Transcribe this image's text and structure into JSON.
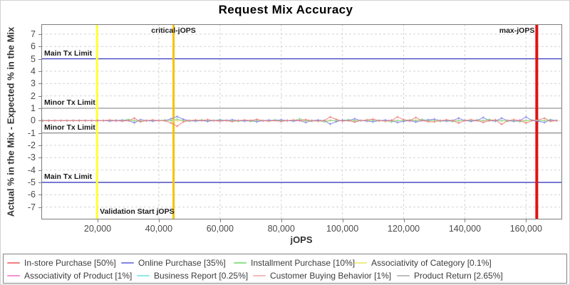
{
  "title": "Request Mix Accuracy",
  "chart_data": {
    "type": "line",
    "title": "Request Mix Accuracy",
    "xlabel": "jOPS",
    "ylabel": "Actual % in the Mix - Expected % in the Mix",
    "grid": true,
    "legend_position": "bottom",
    "x_axis": {
      "min": 1600,
      "max": 171800,
      "ticks": [
        {
          "v": 20000,
          "label": "20,000"
        },
        {
          "v": 40000,
          "label": "40,000"
        },
        {
          "v": 60000,
          "label": "60,000"
        },
        {
          "v": 80000,
          "label": "80,000"
        },
        {
          "v": 100000,
          "label": "100,000"
        },
        {
          "v": 120000,
          "label": "120,000"
        },
        {
          "v": 140000,
          "label": "140,000"
        },
        {
          "v": 160000,
          "label": "160,000"
        }
      ]
    },
    "y_axis": {
      "min": -8.0,
      "max": 7.8,
      "ticks": [
        {
          "v": 7,
          "label": "7"
        },
        {
          "v": 6,
          "label": "6"
        },
        {
          "v": 5,
          "label": "5"
        },
        {
          "v": 4,
          "label": "4"
        },
        {
          "v": 3,
          "label": "3"
        },
        {
          "v": 2,
          "label": "2"
        },
        {
          "v": 1,
          "label": "1"
        },
        {
          "v": 0,
          "label": "0"
        },
        {
          "v": -1,
          "label": "-1"
        },
        {
          "v": -2,
          "label": "-2"
        },
        {
          "v": -3,
          "label": "-3"
        },
        {
          "v": -4,
          "label": "-4"
        },
        {
          "v": -5,
          "label": "-5"
        },
        {
          "v": -6,
          "label": "-6"
        },
        {
          "v": -7,
          "label": "-7"
        }
      ]
    },
    "limit_lines": [
      {
        "y": 5,
        "label": "Main Tx Limit",
        "color": "#2929b8"
      },
      {
        "y": 1,
        "label": "Minor Tx Limit",
        "color": "#8c8c8c"
      },
      {
        "y": -1,
        "label": "Minor Tx Limit",
        "color": "#8c8c8c"
      },
      {
        "y": -5,
        "label": "Main Tx Limit",
        "color": "#2929b8"
      }
    ],
    "markers": [
      {
        "x": 19800,
        "label": "Validation Start jOPS",
        "color": "#ffff30",
        "width": 3
      },
      {
        "x": 44800,
        "label": "critical-jOPS",
        "color": "#f3c300",
        "width": 3
      },
      {
        "x": 163500,
        "label": "max-jOPS",
        "color": "#e11212",
        "width": 4
      }
    ],
    "x": [
      2000,
      4000,
      6000,
      8000,
      10000,
      12000,
      14000,
      16000,
      18000,
      20000,
      22000,
      24000,
      26000,
      28000,
      30000,
      32000,
      34000,
      36000,
      38000,
      40000,
      42000,
      44000,
      46000,
      48000,
      50000,
      52000,
      54000,
      56000,
      58000,
      60000,
      62000,
      64000,
      66000,
      68000,
      70000,
      72000,
      74000,
      76000,
      78000,
      80000,
      82000,
      84000,
      86000,
      88000,
      90000,
      92000,
      94000,
      96000,
      98000,
      100000,
      102000,
      104000,
      106000,
      108000,
      110000,
      112000,
      114000,
      116000,
      118000,
      120000,
      122000,
      124000,
      126000,
      128000,
      130000,
      132000,
      134000,
      136000,
      138000,
      140000,
      142000,
      144000,
      146000,
      148000,
      150000,
      152000,
      154000,
      156000,
      158000,
      160000,
      162000,
      164000,
      166000,
      168000,
      170000
    ],
    "series": [
      {
        "name": "In-store Purchase [50%]",
        "color": "#ef8080",
        "values": [
          0,
          0,
          0,
          0,
          0,
          0,
          0,
          0,
          0,
          0,
          0,
          0.05,
          0,
          -0.05,
          0,
          0.2,
          -0.1,
          0,
          0.05,
          0,
          0,
          -0.2,
          -0.45,
          -0.1,
          0,
          0.05,
          0,
          0.08,
          0,
          -0.05,
          0,
          -0.08,
          0,
          0.05,
          0,
          0.1,
          0,
          -0.05,
          0,
          -0.07,
          0,
          0.05,
          0,
          0.08,
          0,
          -0.05,
          0,
          0.3,
          0.1,
          -0.05,
          0,
          -0.12,
          0,
          0.05,
          0.12,
          0,
          -0.05,
          0,
          0.3,
          0.08,
          0,
          0.25,
          0,
          -0.08,
          -0.1,
          0,
          0.06,
          0,
          -0.2,
          0,
          0.08,
          0,
          -0.15,
          0,
          0.06,
          -0.3,
          0,
          0.08,
          0,
          -0.2,
          0,
          0.06,
          0.2,
          -0.06,
          0
        ]
      },
      {
        "name": "Online Purchase [35%]",
        "color": "#8585e6",
        "values": [
          0,
          0,
          0,
          0,
          0,
          0,
          0,
          0,
          0,
          0,
          0,
          -0.04,
          0,
          0.04,
          0,
          -0.18,
          0.08,
          0,
          -0.04,
          0,
          0,
          0.15,
          0.33,
          0.1,
          0,
          -0.04,
          0,
          -0.06,
          0,
          0.04,
          0,
          0.07,
          0,
          -0.04,
          0,
          -0.1,
          0,
          0.04,
          0,
          0.06,
          0,
          -0.04,
          0,
          -0.15,
          0,
          0.04,
          0,
          -0.28,
          -0.08,
          0.04,
          0,
          0.15,
          0,
          -0.04,
          -0.1,
          0,
          0.04,
          0,
          -0.15,
          -0.06,
          0,
          -0.12,
          0,
          0.06,
          0.12,
          0,
          -0.05,
          0,
          0.2,
          0,
          -0.06,
          0,
          0.25,
          0,
          -0.05,
          0.2,
          0,
          -0.06,
          0,
          0.3,
          0,
          -0.05,
          -0.15,
          0.05,
          0
        ]
      },
      {
        "name": "Installment Purchase [10%]",
        "color": "#8ce28c",
        "values": [
          0,
          0,
          0,
          0,
          0,
          0,
          0,
          0,
          0,
          0,
          0,
          0,
          0.04,
          0,
          0.1,
          0,
          -0.08,
          0,
          0,
          0,
          0.05,
          0,
          0.12,
          0,
          -0.05,
          0,
          0.06,
          0,
          0,
          0.08,
          0,
          0,
          -0.06,
          0,
          -0.07,
          0,
          0,
          0,
          0.06,
          0,
          0,
          0,
          0.15,
          0,
          -0.06,
          0,
          -0.1,
          0,
          0,
          0,
          0.08,
          0,
          0,
          0.06,
          0,
          0,
          0,
          -0.12,
          0,
          0,
          0.06,
          0,
          0.1,
          0,
          0,
          -0.06,
          0,
          -0.08,
          0,
          0,
          0,
          0.06,
          0,
          0.1,
          0,
          0,
          -0.06,
          0,
          -0.1,
          0,
          0.05,
          0,
          0,
          0.08,
          0
        ]
      },
      {
        "name": "Associativity of Category [0.1%]",
        "color": "#eded85",
        "values": [
          0,
          0,
          0,
          0,
          0,
          0,
          0,
          0,
          0,
          0,
          0,
          0,
          0,
          0.03,
          0,
          0,
          0,
          0,
          0,
          -0.03,
          0,
          0,
          0,
          0,
          0,
          0.04,
          0,
          0,
          0,
          0,
          0,
          -0.03,
          0,
          0,
          0,
          0,
          0,
          0.03,
          0,
          0,
          0,
          0,
          0,
          -0.04,
          0,
          0,
          0,
          0,
          0,
          0.03,
          0,
          0,
          0,
          0,
          0,
          -0.03,
          0,
          0,
          0,
          0,
          0,
          0.04,
          0,
          0,
          0,
          0,
          0,
          -0.03,
          0,
          0,
          0,
          0,
          0,
          0.03,
          0,
          0,
          0,
          0,
          0,
          -0.04,
          0,
          0,
          0,
          0,
          0
        ]
      },
      {
        "name": "Associativity of Product [1%]",
        "color": "#f78fd7",
        "values": [
          0,
          0,
          0,
          0,
          0,
          0,
          0,
          0,
          0,
          0,
          0,
          0,
          -0.03,
          0,
          0,
          0,
          0,
          0,
          0.03,
          0,
          0,
          0,
          0,
          0,
          -0.04,
          0,
          0,
          0,
          0,
          0,
          0.03,
          0,
          0,
          0,
          0,
          0,
          -0.03,
          0,
          0,
          0,
          0,
          0,
          0.04,
          0,
          0,
          0,
          0,
          0,
          -0.03,
          0,
          0,
          0,
          0,
          0,
          0.03,
          0,
          0,
          0,
          0,
          0,
          -0.04,
          0,
          0,
          0,
          0,
          0,
          0.03,
          0,
          0,
          0,
          0,
          0,
          -0.03,
          0,
          0,
          0,
          0,
          0,
          0.04,
          0,
          0,
          0,
          0,
          0,
          0
        ]
      },
      {
        "name": "Business Report [0.25%]",
        "color": "#8fe8e8",
        "values": [
          0,
          0,
          0,
          0,
          0,
          0,
          0,
          0,
          0,
          0,
          0,
          0,
          0,
          0,
          0.03,
          0,
          0,
          0,
          0,
          0,
          -0.03,
          0,
          0,
          0,
          0,
          0,
          0.03,
          0,
          0,
          0,
          0,
          0,
          -0.03,
          0,
          0,
          0,
          0,
          0,
          0.04,
          0,
          0,
          0,
          0,
          0,
          -0.03,
          0,
          0,
          0,
          0,
          0,
          0.03,
          0,
          0,
          0,
          0,
          0,
          -0.04,
          0,
          0,
          0,
          0,
          0,
          0.03,
          0,
          0,
          0,
          0,
          0,
          -0.03,
          0,
          0,
          0,
          0,
          0,
          0.04,
          0,
          0,
          0,
          0,
          -0.03,
          0,
          0,
          0,
          0
        ]
      },
      {
        "name": "Customer Buying Behavior [1%]",
        "color": "#f7baba",
        "values": [
          0,
          0,
          0,
          0,
          0,
          0,
          0,
          0,
          0,
          0,
          0,
          0.03,
          0,
          0,
          0,
          0,
          0,
          -0.03,
          0,
          0,
          0,
          0,
          0,
          0.03,
          0,
          0,
          0,
          0,
          0,
          -0.04,
          0,
          0,
          0,
          0,
          0,
          0.03,
          0,
          0,
          0,
          0,
          0,
          -0.03,
          0,
          0,
          0,
          0,
          0,
          0.04,
          0,
          0,
          0,
          0,
          0,
          -0.03,
          0,
          0,
          0,
          0,
          0,
          0.03,
          0,
          0,
          0,
          0,
          0,
          -0.04,
          0,
          0,
          0,
          0,
          0,
          0.03,
          0,
          0,
          0,
          0,
          0,
          -0.03,
          0,
          0,
          0,
          0,
          0,
          0
        ]
      },
      {
        "name": "Product Return [2.65%]",
        "color": "#bdbdbd",
        "values": [
          0,
          0,
          0,
          0,
          0,
          0,
          0,
          0,
          0,
          0,
          0,
          0,
          0,
          0,
          0,
          -0.03,
          0,
          0,
          0,
          0,
          0,
          0.03,
          0,
          0,
          0,
          0,
          0,
          -0.03,
          0,
          0,
          0,
          0,
          0,
          0.04,
          0,
          0,
          0,
          0,
          0,
          -0.03,
          0,
          0,
          0,
          0,
          0,
          0.03,
          0,
          0,
          0,
          0,
          0,
          -0.04,
          0,
          0,
          0,
          0,
          0,
          0.03,
          0,
          0,
          0,
          0,
          0,
          -0.03,
          0,
          0,
          0,
          0,
          0,
          0.04,
          0,
          0,
          0,
          0,
          0,
          -0.03,
          0,
          0,
          0,
          0,
          0.03,
          0,
          0,
          0
        ]
      }
    ]
  }
}
